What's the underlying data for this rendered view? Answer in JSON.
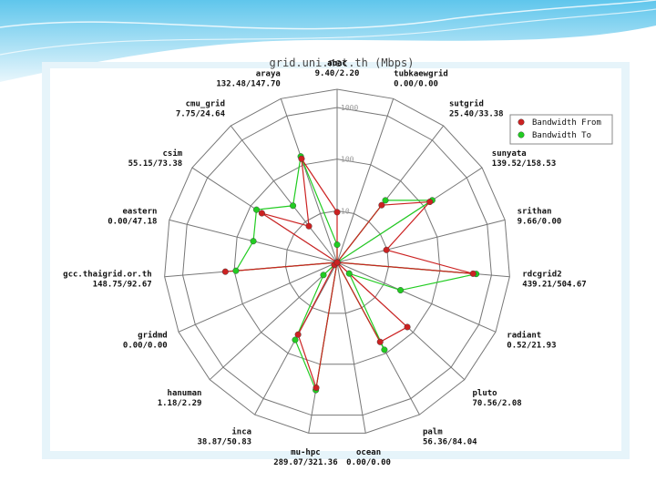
{
  "chart_data": {
    "type": "radar",
    "title": "grid.uni.net.th (Mbps)",
    "scale": "log",
    "rings": [
      1,
      10,
      100,
      1000
    ],
    "tick_labels": [
      "10",
      "100",
      "1000"
    ],
    "legend": [
      {
        "label": "Bandwidth From",
        "color": "#cc2222"
      },
      {
        "label": "Bandwidth To",
        "color": "#22cc22"
      }
    ],
    "categories": [
      {
        "name": "abac",
        "value_text": "9.40/2.20",
        "from": 9.4,
        "to": 2.2
      },
      {
        "name": "tubkaewgrid",
        "value_text": "0.00/0.00",
        "from": 0.0,
        "to": 0.0
      },
      {
        "name": "sutgrid",
        "value_text": "25.40/33.38",
        "from": 25.4,
        "to": 33.38
      },
      {
        "name": "sunyata",
        "value_text": "139.52/158.53",
        "from": 139.52,
        "to": 158.53
      },
      {
        "name": "srithan",
        "value_text": "9.66/0.00",
        "from": 9.66,
        "to": 0.0
      },
      {
        "name": "rdcgrid2",
        "value_text": "439.21/504.67",
        "from": 439.21,
        "to": 504.67
      },
      {
        "name": "radiant",
        "value_text": "0.52/21.93",
        "from": 0.52,
        "to": 21.93
      },
      {
        "name": "pluto",
        "value_text": "70.56/2.08",
        "from": 70.56,
        "to": 2.08
      },
      {
        "name": "palm",
        "value_text": "56.36/84.04",
        "from": 56.36,
        "to": 84.04
      },
      {
        "name": "ocean",
        "value_text": "0.00/0.00",
        "from": 0.0,
        "to": 0.0
      },
      {
        "name": "mu-hpc",
        "value_text": "289.07/321.36",
        "from": 289.07,
        "to": 321.36
      },
      {
        "name": "inca",
        "value_text": "38.87/50.83",
        "from": 38.87,
        "to": 50.83
      },
      {
        "name": "hanuman",
        "value_text": "1.18/2.29",
        "from": 1.18,
        "to": 2.29
      },
      {
        "name": "gridmd",
        "value_text": "0.00/0.00",
        "from": 0.0,
        "to": 0.0
      },
      {
        "name": "gcc.thaigrid.or.th",
        "value_text": "148.75/92.67",
        "from": 148.75,
        "to": 92.67
      },
      {
        "name": "eastern",
        "value_text": "0.00/47.18",
        "from": 0.0,
        "to": 47.18
      },
      {
        "name": "csim",
        "value_text": "55.15/73.38",
        "from": 55.15,
        "to": 73.38
      },
      {
        "name": "cmu_grid",
        "value_text": "7.75/24.64",
        "from": 7.75,
        "to": 24.64
      },
      {
        "name": "araya",
        "value_text": "132.48/147.70",
        "from": 132.48,
        "to": 147.7
      }
    ]
  }
}
